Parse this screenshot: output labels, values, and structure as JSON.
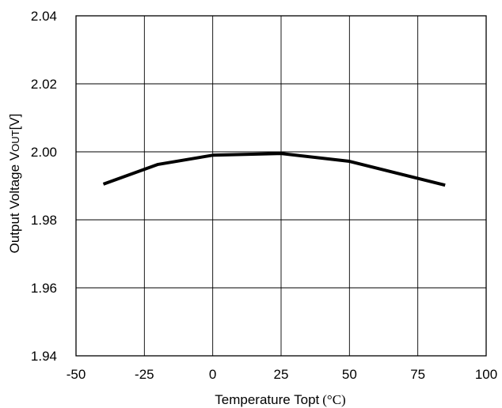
{
  "chart_data": {
    "type": "line",
    "title": "",
    "xlabel": "Temperature Topt",
    "xlabel_unit": "(°C)",
    "ylabel": "Output Voltage V",
    "ylabel_sub": "OUT",
    "ylabel_unit": "[V]",
    "xlim": [
      -50,
      100
    ],
    "ylim": [
      1.94,
      2.04
    ],
    "xticks": [
      "-50",
      "-25",
      "0",
      "25",
      "50",
      "75",
      "100"
    ],
    "yticks": [
      "1.94",
      "1.96",
      "1.98",
      "2.00",
      "2.02",
      "2.04"
    ],
    "grid": true,
    "legend": "none",
    "series": [
      {
        "x": [
          -40,
          -20,
          0,
          25,
          50,
          85
        ],
        "y": [
          1.9905,
          1.9963,
          1.999,
          1.9995,
          1.9972,
          1.9902
        ]
      }
    ],
    "colors": {
      "line": "#000000",
      "grid": "#000000",
      "frame": "#000000"
    }
  }
}
